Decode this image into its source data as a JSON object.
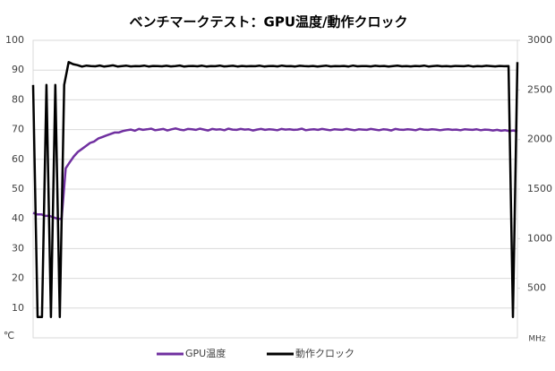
{
  "chart_data": {
    "type": "line",
    "title": "ベンチマークテスト：GPU温度/動作クロック",
    "y_label": "℃",
    "y2_label": "MHz",
    "ylim": [
      0,
      100
    ],
    "yticks": [
      10,
      20,
      30,
      40,
      50,
      60,
      70,
      80,
      90,
      100
    ],
    "y2lim": [
      0,
      3000
    ],
    "y2ticks": [
      500,
      1000,
      1500,
      2000,
      2500,
      3000
    ],
    "grid": true,
    "legend": "bottom",
    "series": [
      {
        "name": "GPU温度",
        "color": "#7030a0",
        "values": [
          42,
          41.5,
          41.5,
          41,
          41,
          40.5,
          40,
          40,
          57,
          59,
          61,
          62.5,
          63.5,
          64.5,
          65.5,
          66,
          67,
          67.5,
          68,
          68.5,
          69,
          69,
          69.5,
          69.8,
          70,
          69.6,
          70.2,
          69.9,
          70.1,
          70.3,
          69.8,
          70,
          70.2,
          69.7,
          70.1,
          70.4,
          70,
          69.8,
          70.2,
          70.1,
          69.9,
          70.3,
          70,
          69.7,
          70.2,
          70,
          70.1,
          69.8,
          70.3,
          70,
          69.9,
          70.2,
          70,
          70.1,
          69.7,
          70,
          70.2,
          69.9,
          70.1,
          70,
          69.8,
          70.2,
          70,
          70.1,
          69.9,
          70,
          70.3,
          69.8,
          70,
          70.1,
          69.9,
          70.2,
          70,
          69.8,
          70.1,
          70,
          69.9,
          70.2,
          70,
          69.8,
          70.1,
          70,
          69.9,
          70.2,
          70,
          69.8,
          70.1,
          70,
          69.7,
          70.2,
          70,
          69.9,
          70.1,
          70,
          69.8,
          70.2,
          70,
          69.9,
          70.1,
          70,
          69.8,
          70,
          70.1,
          69.9,
          70,
          69.8,
          70.1,
          70,
          69.9,
          70.1,
          69.8,
          70,
          69.9,
          69.7,
          69.9,
          69.6,
          69.8,
          69.5,
          69.7,
          69.4
        ]
      },
      {
        "name": "動作クロック",
        "color": "#000000",
        "axis": "y2",
        "values": [
          2550,
          210,
          210,
          2550,
          210,
          2550,
          210,
          2550,
          2780,
          2760,
          2750,
          2735,
          2745,
          2740,
          2738,
          2746,
          2735,
          2742,
          2748,
          2736,
          2740,
          2744,
          2737,
          2741,
          2739,
          2745,
          2736,
          2742,
          2740,
          2738,
          2743,
          2737,
          2741,
          2746,
          2735,
          2740,
          2742,
          2738,
          2744,
          2736,
          2741,
          2739,
          2745,
          2737,
          2740,
          2743,
          2736,
          2742,
          2738,
          2741,
          2739,
          2744,
          2736,
          2740,
          2742,
          2737,
          2745,
          2739,
          2741,
          2736,
          2743,
          2740,
          2738,
          2742,
          2735,
          2741,
          2744,
          2737,
          2740,
          2739,
          2742,
          2736,
          2745,
          2738,
          2741,
          2740,
          2737,
          2743,
          2739,
          2742,
          2736,
          2740,
          2744,
          2738,
          2741,
          2737,
          2742,
          2739,
          2745,
          2736,
          2740,
          2743,
          2738,
          2741,
          2737,
          2742,
          2740,
          2739,
          2744,
          2736,
          2741,
          2738,
          2743,
          2740,
          2737,
          2742,
          2739,
          2741,
          210,
          2780
        ]
      }
    ]
  }
}
